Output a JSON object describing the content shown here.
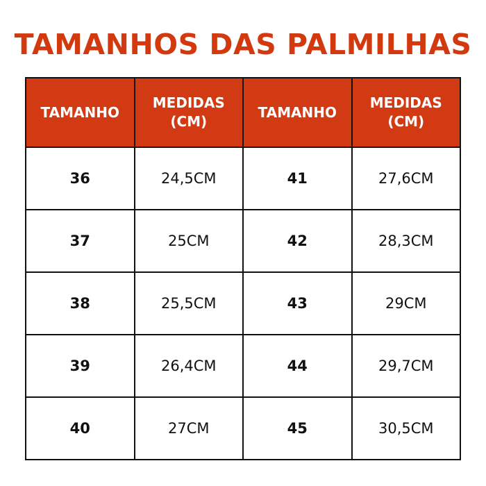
{
  "title": "TAMANHOS DAS PALMILHAS",
  "colors": {
    "accent": "#d13a12",
    "text": "#111111"
  },
  "headers": [
    "TAMANHO",
    "MEDIDAS (CM)",
    "TAMANHO",
    "MEDIDAS (CM)"
  ],
  "rows": [
    {
      "size_a": "36",
      "cm_a": "24,5CM",
      "size_b": "41",
      "cm_b": "27,6CM"
    },
    {
      "size_a": "37",
      "cm_a": "25CM",
      "size_b": "42",
      "cm_b": "28,3CM"
    },
    {
      "size_a": "38",
      "cm_a": "25,5CM",
      "size_b": "43",
      "cm_b": "29CM"
    },
    {
      "size_a": "39",
      "cm_a": "26,4CM",
      "size_b": "44",
      "cm_b": "29,7CM"
    },
    {
      "size_a": "40",
      "cm_a": "27CM",
      "size_b": "45",
      "cm_b": "30,5CM"
    }
  ]
}
